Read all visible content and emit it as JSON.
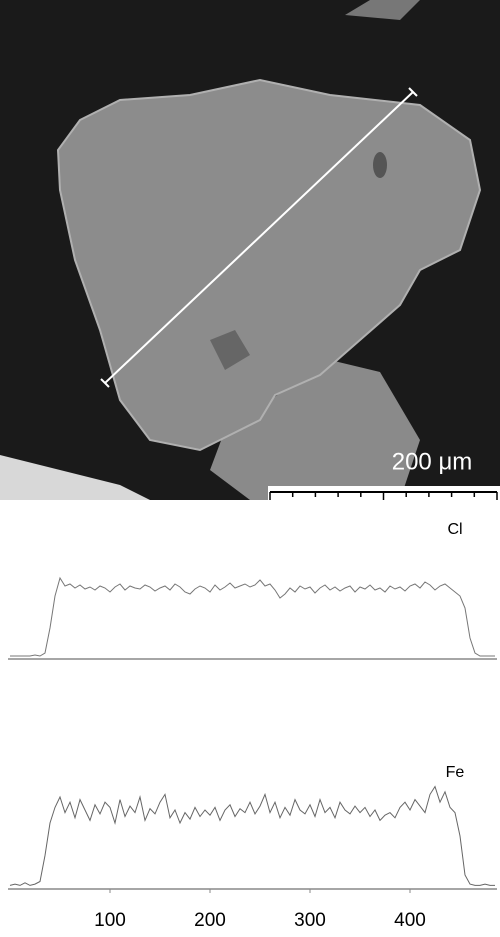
{
  "image": {
    "scale_bar": "200 μm"
  },
  "chart_data": [
    {
      "type": "line",
      "title": "Cl",
      "color": "#777777",
      "xlim": [
        0,
        487
      ],
      "ylim": [
        0,
        100
      ],
      "x": [
        0,
        5,
        10,
        15,
        20,
        25,
        30,
        35,
        40,
        45,
        50,
        55,
        60,
        65,
        70,
        75,
        80,
        85,
        90,
        95,
        100,
        105,
        110,
        115,
        120,
        125,
        130,
        135,
        140,
        145,
        150,
        155,
        160,
        165,
        170,
        175,
        180,
        185,
        190,
        195,
        200,
        205,
        210,
        215,
        220,
        225,
        230,
        235,
        240,
        245,
        250,
        255,
        260,
        265,
        270,
        275,
        280,
        285,
        290,
        295,
        300,
        305,
        310,
        315,
        320,
        325,
        330,
        335,
        340,
        345,
        350,
        355,
        360,
        365,
        370,
        375,
        380,
        385,
        390,
        395,
        400,
        405,
        410,
        415,
        420,
        425,
        430,
        435,
        440,
        445,
        450,
        455,
        460,
        465,
        470,
        475,
        480,
        485
      ],
      "values": [
        2,
        2,
        2,
        2,
        2,
        3,
        2,
        5,
        30,
        62,
        80,
        72,
        74,
        70,
        73,
        69,
        71,
        68,
        72,
        70,
        66,
        71,
        74,
        68,
        72,
        70,
        69,
        73,
        71,
        67,
        70,
        72,
        68,
        74,
        71,
        66,
        64,
        69,
        72,
        70,
        66,
        73,
        68,
        71,
        75,
        70,
        72,
        74,
        71,
        73,
        78,
        72,
        74,
        68,
        60,
        64,
        70,
        66,
        72,
        69,
        71,
        65,
        70,
        73,
        68,
        71,
        67,
        70,
        72,
        66,
        71,
        69,
        73,
        68,
        70,
        66,
        72,
        69,
        71,
        67,
        72,
        74,
        70,
        76,
        73,
        68,
        72,
        74,
        70,
        66,
        62,
        50,
        20,
        5,
        2,
        2,
        2,
        2
      ]
    },
    {
      "type": "line",
      "title": "Fe",
      "color": "#666666",
      "xlim": [
        0,
        487
      ],
      "ylim": [
        0,
        100
      ],
      "xticks": [
        100,
        200,
        300,
        400
      ],
      "x": [
        0,
        5,
        10,
        15,
        20,
        25,
        30,
        35,
        40,
        45,
        50,
        55,
        60,
        65,
        70,
        75,
        80,
        85,
        90,
        95,
        100,
        105,
        110,
        115,
        120,
        125,
        130,
        135,
        140,
        145,
        150,
        155,
        160,
        165,
        170,
        175,
        180,
        185,
        190,
        195,
        200,
        205,
        210,
        215,
        220,
        225,
        230,
        235,
        240,
        245,
        250,
        255,
        260,
        265,
        270,
        275,
        280,
        285,
        290,
        295,
        300,
        305,
        310,
        315,
        320,
        325,
        330,
        335,
        340,
        345,
        350,
        355,
        360,
        365,
        370,
        375,
        380,
        385,
        390,
        395,
        400,
        405,
        410,
        415,
        420,
        425,
        430,
        435,
        440,
        445,
        450,
        455,
        460,
        465,
        470,
        475,
        480,
        485
      ],
      "values": [
        2,
        3,
        2,
        4,
        2,
        3,
        5,
        25,
        50,
        62,
        70,
        58,
        66,
        54,
        68,
        60,
        52,
        64,
        57,
        66,
        62,
        50,
        68,
        55,
        63,
        58,
        70,
        52,
        61,
        57,
        66,
        72,
        54,
        60,
        50,
        58,
        53,
        62,
        55,
        60,
        56,
        62,
        52,
        60,
        64,
        55,
        61,
        58,
        66,
        57,
        63,
        72,
        58,
        66,
        54,
        62,
        56,
        68,
        60,
        57,
        64,
        55,
        68,
        58,
        62,
        54,
        66,
        60,
        57,
        63,
        58,
        62,
        55,
        60,
        52,
        56,
        58,
        54,
        62,
        66,
        60,
        68,
        63,
        58,
        72,
        78,
        66,
        74,
        62,
        58,
        40,
        10,
        3,
        2,
        2,
        3,
        2,
        2
      ]
    }
  ]
}
